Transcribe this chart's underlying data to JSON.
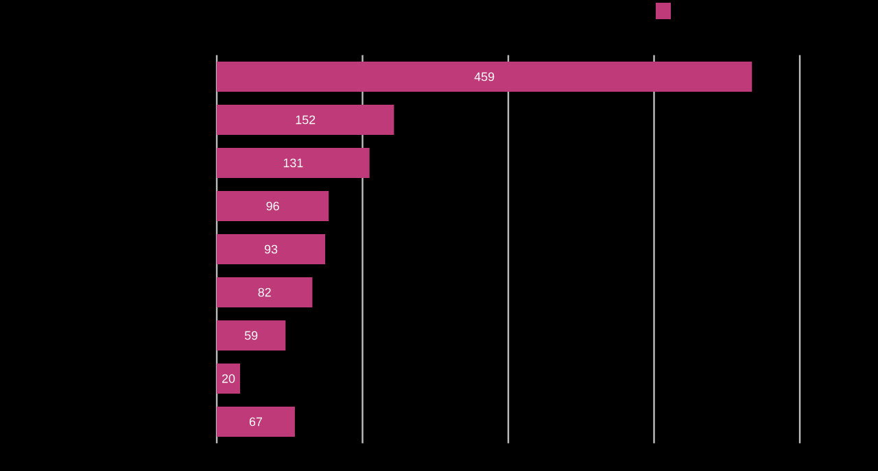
{
  "chart_data": {
    "type": "bar",
    "orientation": "horizontal",
    "categories": [
      null,
      null,
      null,
      null,
      null,
      null,
      null,
      null,
      null
    ],
    "series": [
      {
        "color": "#be3a79",
        "values": [
          459,
          152,
          131,
          96,
          93,
          82,
          59,
          20,
          67
        ]
      }
    ],
    "xlim": [
      0,
      500
    ],
    "xticks": [
      {
        "value": 0,
        "label": null
      },
      {
        "value": 125,
        "label": null
      },
      {
        "value": 250,
        "label": null
      },
      {
        "value": 375,
        "label": null
      },
      {
        "value": 500,
        "label": null
      }
    ],
    "grid": "x",
    "data_labels": true
  }
}
